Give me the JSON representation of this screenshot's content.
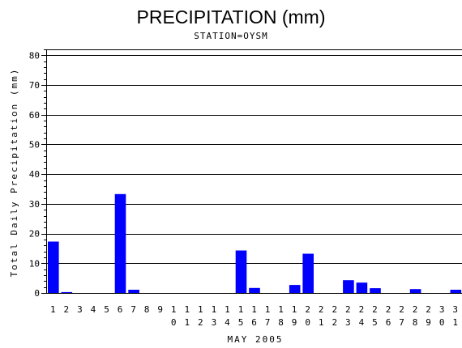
{
  "chart_data": {
    "type": "bar",
    "title": "PRECIPITATION (mm)",
    "subtitle": "STATION=OYSM",
    "xlabel": "MAY 2005",
    "ylabel": "Total Daily Precipitation (mm)",
    "ylim": [
      0,
      82
    ],
    "yticks": [
      0,
      10,
      20,
      30,
      40,
      50,
      60,
      70,
      80
    ],
    "grid": true,
    "bar_color": "#0000ff",
    "categories": [
      "1",
      "2",
      "3",
      "4",
      "5",
      "6",
      "7",
      "8",
      "9",
      "10",
      "11",
      "12",
      "13",
      "14",
      "15",
      "16",
      "17",
      "18",
      "19",
      "20",
      "21",
      "22",
      "23",
      "24",
      "25",
      "26",
      "27",
      "28",
      "29",
      "30",
      "31"
    ],
    "values": [
      17.3,
      0.3,
      0,
      0,
      0,
      33.3,
      1.1,
      0,
      0,
      0,
      0,
      0,
      0,
      0,
      14.3,
      1.7,
      0,
      0,
      2.7,
      13.2,
      0,
      0,
      4.3,
      3.5,
      1.6,
      0,
      0,
      1.3,
      0,
      0,
      1.1
    ]
  }
}
